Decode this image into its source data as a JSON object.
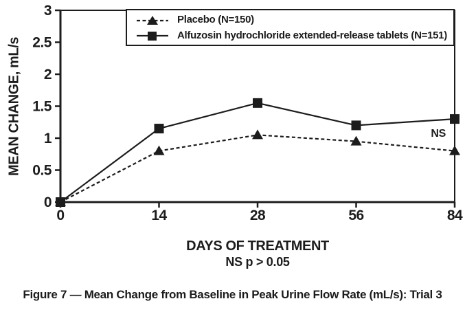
{
  "figure": {
    "caption": "Figure 7 — Mean Change from Baseline in Peak Urine Flow Rate (mL/s): Trial 3"
  },
  "chart_data": {
    "type": "line",
    "xlabel": "DAYS OF TREATMENT",
    "ylabel": "MEAN CHANGE, mL/s",
    "footnote": "NS p > 0.05",
    "annotation": "NS",
    "categories": [
      "0",
      "14",
      "28",
      "56",
      "84"
    ],
    "x_values_days": [
      0,
      14,
      28,
      56,
      84
    ],
    "ylim": [
      0,
      3
    ],
    "y_ticks": [
      0,
      0.5,
      1,
      1.5,
      2,
      2.5,
      3
    ],
    "y_tick_labels": [
      "0",
      "0.5",
      "1",
      "1.5",
      "2",
      "2.5",
      "3"
    ],
    "grid": false,
    "legend_position": "top",
    "series": [
      {
        "id": "placebo",
        "name": "Placebo (N=150)",
        "marker": "triangle",
        "line": "dashed",
        "values": [
          0,
          0.8,
          1.05,
          0.95,
          0.8
        ]
      },
      {
        "id": "alfuzosin",
        "name": "Alfuzosin hydrochloride extended-release tablets (N=151)",
        "marker": "square",
        "line": "solid",
        "values": [
          0,
          1.15,
          1.55,
          1.2,
          1.3
        ]
      }
    ],
    "colors": {
      "ink": "#1c1c1c",
      "background": "#ffffff"
    }
  }
}
